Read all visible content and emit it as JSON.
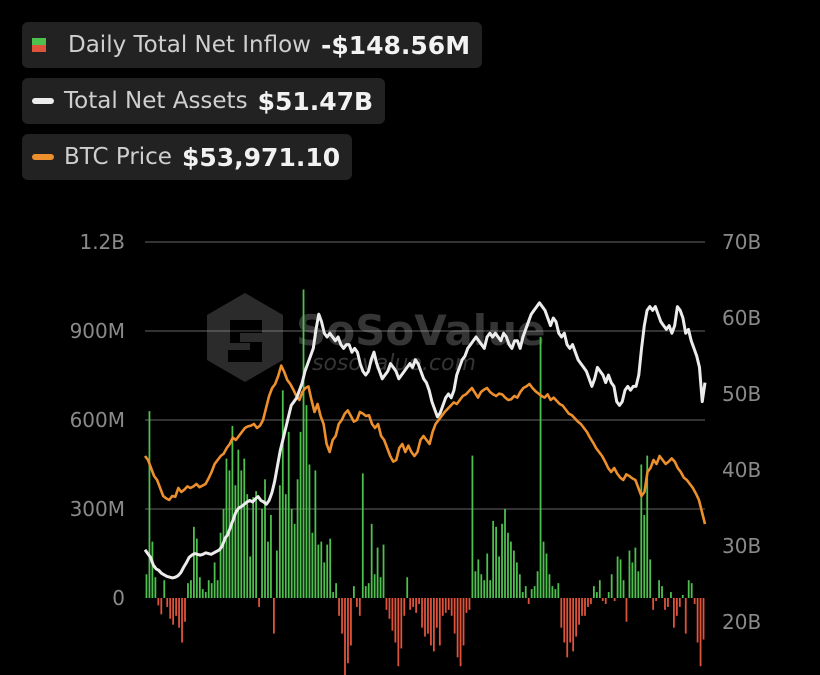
{
  "legend": {
    "inflow": {
      "label": "Daily Total Net Inflow",
      "value": "-$148.56M"
    },
    "assets": {
      "label": "Total Net Assets",
      "value": "$51.47B"
    },
    "btc": {
      "label": "BTC Price",
      "value": "$53,971.10"
    }
  },
  "watermark": {
    "brand": "SoSoValue",
    "url": "sosovalue.com"
  },
  "colors": {
    "positive": "#4ec04e",
    "negative": "#e0533b",
    "assets_line": "#ececec",
    "btc_line": "#ec8f2c",
    "grid": "#444444",
    "tick": "#8a8a8a"
  },
  "chart_data": {
    "type": "bar",
    "title": "",
    "left_axis": {
      "ticks": [
        "1.2B",
        "900M",
        "600M",
        "300M",
        "0"
      ],
      "range": [
        -300000000,
        1200000000
      ]
    },
    "right_axis": {
      "ticks": [
        "70B",
        "60B",
        "50B",
        "40B",
        "30B",
        "20B"
      ],
      "range": [
        20,
        70
      ]
    },
    "series": [
      {
        "name": "Daily Total Net Inflow",
        "type": "bar",
        "unit": "USD",
        "values": [
          80000000.0,
          630000000.0,
          190000000.0,
          70000000.0,
          -25000000.0,
          -55000000.0,
          60000000.0,
          -30000000.0,
          -70000000.0,
          -90000000.0,
          -60000000.0,
          -100000000.0,
          -150000000.0,
          -80000000.0,
          50000000.0,
          60000000.0,
          240000000.0,
          200000000.0,
          70000000.0,
          30000000.0,
          20000000.0,
          60000000.0,
          50000000.0,
          120000000.0,
          60000000.0,
          220000000.0,
          300000000.0,
          470000000.0,
          430000000.0,
          580000000.0,
          380000000.0,
          500000000.0,
          430000000.0,
          470000000.0,
          350000000.0,
          140000000.0,
          340000000.0,
          360000000.0,
          -30000000.0,
          300000000.0,
          400000000.0,
          190000000.0,
          280000000.0,
          -120000000.0,
          160000000.0,
          380000000.0,
          700000000.0,
          350000000.0,
          560000000.0,
          300000000.0,
          250000000.0,
          400000000.0,
          560000000.0,
          1040000000.0,
          650000000.0,
          450000000.0,
          220000000.0,
          430000000.0,
          180000000.0,
          190000000.0,
          120000000.0,
          180000000.0,
          200000000.0,
          20000000.0,
          50000000.0,
          -60000000.0,
          -120000000.0,
          -260000000.0,
          -220000000.0,
          -160000000.0,
          40000000.0,
          -30000000.0,
          -60000000.0,
          420000000.0,
          40000000.0,
          50000000.0,
          250000000.0,
          80000000.0,
          170000000.0,
          70000000.0,
          180000000.0,
          -40000000.0,
          -70000000.0,
          -110000000.0,
          -150000000.0,
          -230000000.0,
          -170000000.0,
          -60000000.0,
          70000000.0,
          -40000000.0,
          -30000000.0,
          -50000000.0,
          -20000000.0,
          -100000000.0,
          -130000000.0,
          -120000000.0,
          -160000000.0,
          -180000000.0,
          -100000000.0,
          -160000000.0,
          -60000000.0,
          -50000000.0,
          -40000000.0,
          -60000000.0,
          -120000000.0,
          -200000000.0,
          -230000000.0,
          -160000000.0,
          -50000000.0,
          -40000000.0,
          480000000.0,
          90000000.0,
          130000000.0,
          80000000.0,
          60000000.0,
          150000000.0,
          60000000.0,
          260000000.0,
          240000000.0,
          140000000.0,
          250000000.0,
          300000000.0,
          220000000.0,
          190000000.0,
          160000000.0,
          120000000.0,
          80000000.0,
          20000000.0,
          40000000.0,
          -20000000.0,
          30000000.0,
          40000000.0,
          90000000.0,
          880000000.0,
          190000000.0,
          150000000.0,
          80000000.0,
          40000000.0,
          30000000.0,
          50000000.0,
          -100000000.0,
          -150000000.0,
          -200000000.0,
          -150000000.0,
          -180000000.0,
          -130000000.0,
          -90000000.0,
          -60000000.0,
          -60000000.0,
          -30000000.0,
          -20000000.0,
          40000000.0,
          20000000.0,
          60000000.0,
          -10000000.0,
          -20000000.0,
          20000000.0,
          80000000.0,
          -10000000.0,
          140000000.0,
          130000000.0,
          60000000.0,
          -80000000.0,
          160000000.0,
          120000000.0,
          170000000.0,
          90000000.0,
          450000000.0,
          280000000.0,
          480000000.0,
          130000000.0,
          -40000000.0,
          -10000000.0,
          60000000.0,
          40000000.0,
          -40000000.0,
          -30000000.0,
          20000000.0,
          -100000000.0,
          -60000000.0,
          -30000000.0,
          10000000.0,
          -120000000.0,
          60000000.0,
          50000000.0,
          -20000000.0,
          -150000000.0,
          -230000000.0,
          -140000000.0
        ]
      },
      {
        "name": "Total Net Assets",
        "type": "line",
        "unit": "USD billions",
        "values": [
          29.5,
          29.0,
          28.5,
          27.5,
          27.0,
          26.8,
          26.4,
          26.2,
          26.0,
          25.9,
          25.8,
          25.9,
          26.1,
          26.5,
          27.2,
          27.8,
          28.5,
          28.8,
          29.0,
          28.9,
          28.8,
          28.9,
          29.1,
          29.0,
          28.9,
          29.1,
          29.3,
          29.5,
          30.0,
          31.0,
          31.5,
          32.5,
          33.5,
          34.5,
          35.0,
          35.2,
          35.5,
          35.8,
          36.0,
          35.8,
          36.2,
          36.5,
          36.0,
          35.8,
          35.5,
          36.0,
          37.0,
          38.5,
          40.5,
          42.5,
          44.0,
          45.5,
          47.0,
          48.5,
          49.0,
          49.5,
          50.5,
          51.5,
          53.0,
          54.0,
          55.0,
          56.0,
          58.5,
          60.5,
          59.5,
          58.0,
          57.5,
          58.0,
          57.5,
          57.0,
          57.5,
          56.5,
          56.0,
          56.5,
          56.5,
          55.5,
          56.0,
          55.5,
          54.0,
          53.0,
          52.5,
          53.0,
          54.5,
          55.5,
          54.0,
          53.0,
          52.0,
          52.5,
          53.0,
          54.0,
          53.5,
          53.0,
          52.0,
          52.5,
          53.0,
          53.5,
          54.0,
          53.5,
          54.5,
          54.0,
          53.0,
          52.0,
          51.5,
          50.5,
          49.0,
          48.0,
          47.0,
          47.5,
          48.5,
          49.5,
          50.0,
          49.5,
          50.5,
          52.5,
          53.5,
          54.5,
          55.0,
          56.0,
          56.5,
          57.0,
          57.5,
          57.0,
          56.5,
          56.0,
          57.5,
          58.0,
          57.5,
          58.0,
          57.5,
          57.0,
          58.0,
          57.5,
          56.5,
          56.0,
          57.0,
          57.0,
          56.0,
          57.5,
          58.5,
          59.5,
          60.5,
          61.0,
          61.5,
          62.0,
          61.5,
          61.0,
          60.0,
          59.0,
          60.0,
          59.5,
          58.0,
          57.5,
          58.0,
          56.5,
          56.0,
          56.5,
          55.5,
          54.5,
          54.0,
          53.5,
          53.0,
          52.0,
          51.0,
          52.0,
          53.5,
          53.0,
          52.5,
          51.5,
          52.5,
          51.5,
          51.0,
          49.0,
          48.5,
          49.0,
          50.5,
          51.0,
          50.5,
          51.0,
          51.0,
          52.5,
          56.0,
          59.0,
          61.0,
          61.5,
          61.0,
          61.5,
          60.5,
          59.5,
          59.0,
          58.5,
          59.0,
          58.0,
          59.0,
          61.5,
          61.0,
          60.0,
          58.0,
          58.5,
          57.0,
          56.0,
          55.0,
          53.5,
          49.0,
          51.5
        ]
      },
      {
        "name": "BTC Price",
        "type": "line",
        "unit": "USD",
        "values": [
          62500,
          62000,
          61000,
          60000,
          59500,
          58500,
          57500,
          57200,
          57000,
          57500,
          57400,
          58500,
          58000,
          58300,
          58700,
          58500,
          58700,
          59000,
          58600,
          58800,
          59000,
          59700,
          60500,
          61500,
          62000,
          62500,
          62800,
          63500,
          64000,
          64800,
          64500,
          65000,
          65500,
          66000,
          66200,
          66300,
          66500,
          66000,
          66300,
          67000,
          68500,
          70000,
          71000,
          71500,
          72500,
          73800,
          73000,
          72000,
          71500,
          70800,
          70000,
          69500,
          70500,
          71000,
          71200,
          69500,
          68000,
          69000,
          67500,
          66500,
          64000,
          63000,
          64500,
          65000,
          66500,
          67000,
          67800,
          68200,
          67500,
          66800,
          67000,
          68000,
          67800,
          67500,
          67600,
          66500,
          66000,
          66500,
          65000,
          64500,
          63500,
          62500,
          61800,
          62000,
          63500,
          64000,
          63000,
          63800,
          63000,
          62500,
          63000,
          64500,
          65000,
          64500,
          64000,
          65500,
          66500,
          67000,
          67500,
          68000,
          68400,
          68800,
          69200,
          69000,
          69500,
          70000,
          70200,
          70600,
          71000,
          70400,
          69800,
          70500,
          70800,
          71000,
          70500,
          70200,
          70000,
          70300,
          70200,
          69800,
          69500,
          69600,
          70000,
          69800,
          70500,
          71000,
          71200,
          71500,
          71000,
          70600,
          70300,
          70000,
          69800,
          70200,
          69500,
          69800,
          69400,
          69000,
          68800,
          68300,
          67800,
          67600,
          67200,
          66800,
          66500,
          66000,
          65500,
          64800,
          64200,
          63500,
          63000,
          62500,
          61800,
          61000,
          60500,
          61000,
          60300,
          59800,
          59500,
          60200,
          60000,
          59700,
          59500,
          58500,
          57500,
          58000,
          60500,
          61000,
          62000,
          61500,
          62500,
          62000,
          61500,
          61800,
          62200,
          61800,
          61000,
          60500,
          59800,
          59500,
          59000,
          58500,
          57800,
          57000,
          55500,
          54000
        ]
      }
    ],
    "legend_position": "top-left",
    "grid": "horizontal"
  }
}
